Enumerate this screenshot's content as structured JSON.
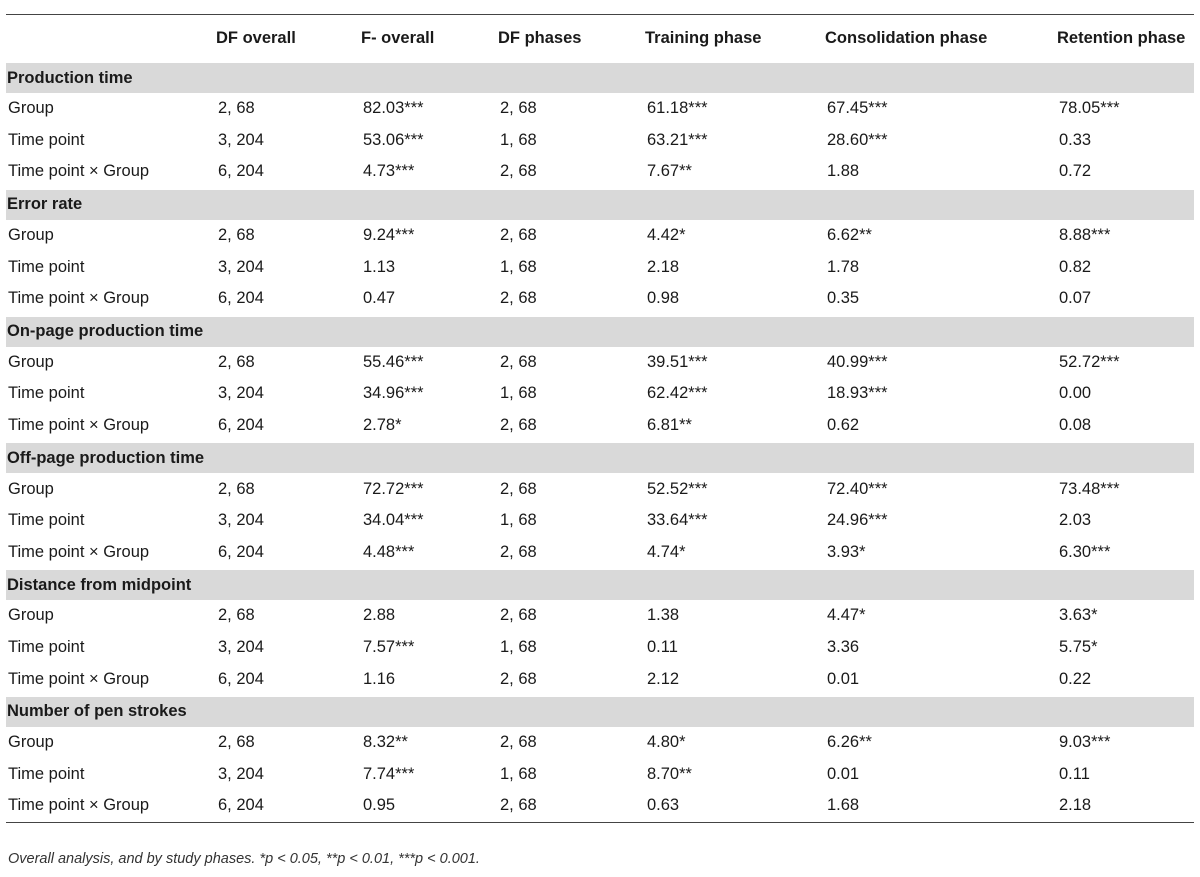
{
  "table": {
    "headers": [
      "",
      "DF overall",
      "F- overall",
      "DF phases",
      "Training phase",
      "Consolidation phase",
      "Retention phase"
    ],
    "sections": [
      {
        "title": "Production time",
        "rows": [
          [
            "Group",
            "2, 68",
            "82.03***",
            "2, 68",
            "61.18***",
            "67.45***",
            "78.05***"
          ],
          [
            "Time point",
            "3, 204",
            "53.06***",
            "1, 68",
            "63.21***",
            "28.60***",
            "0.33"
          ],
          [
            "Time point × Group",
            "6, 204",
            "4.73***",
            "2, 68",
            "7.67**",
            "1.88",
            "0.72"
          ]
        ]
      },
      {
        "title": "Error rate",
        "rows": [
          [
            "Group",
            "2, 68",
            "9.24***",
            "2, 68",
            "4.42*",
            "6.62**",
            "8.88***"
          ],
          [
            "Time point",
            "3, 204",
            "1.13",
            "1, 68",
            "2.18",
            "1.78",
            "0.82"
          ],
          [
            "Time point × Group",
            "6, 204",
            "0.47",
            "2, 68",
            "0.98",
            "0.35",
            "0.07"
          ]
        ]
      },
      {
        "title": "On-page production time",
        "rows": [
          [
            "Group",
            "2, 68",
            "55.46***",
            "2, 68",
            "39.51***",
            "40.99***",
            "52.72***"
          ],
          [
            "Time point",
            "3, 204",
            "34.96***",
            "1, 68",
            "62.42***",
            "18.93***",
            "0.00"
          ],
          [
            "Time point × Group",
            "6, 204",
            "2.78*",
            "2, 68",
            "6.81**",
            "0.62",
            "0.08"
          ]
        ]
      },
      {
        "title": "Off-page production time",
        "rows": [
          [
            "Group",
            "2, 68",
            "72.72***",
            "2, 68",
            "52.52***",
            "72.40***",
            "73.48***"
          ],
          [
            "Time point",
            "3, 204",
            "34.04***",
            "1, 68",
            "33.64***",
            "24.96***",
            "2.03"
          ],
          [
            "Time point × Group",
            "6, 204",
            "4.48***",
            "2, 68",
            "4.74*",
            "3.93*",
            "6.30***"
          ]
        ]
      },
      {
        "title": "Distance from midpoint",
        "rows": [
          [
            "Group",
            "2, 68",
            "2.88",
            "2, 68",
            "1.38",
            "4.47*",
            "3.63*"
          ],
          [
            "Time point",
            "3, 204",
            "7.57***",
            "1, 68",
            "0.11",
            "3.36",
            "5.75*"
          ],
          [
            "Time point × Group",
            "6, 204",
            "1.16",
            "2, 68",
            "2.12",
            "0.01",
            "0.22"
          ]
        ]
      },
      {
        "title": "Number of pen strokes",
        "rows": [
          [
            "Group",
            "2, 68",
            "8.32**",
            "2, 68",
            "4.80*",
            "6.26**",
            "9.03***"
          ],
          [
            "Time point",
            "3, 204",
            "7.74***",
            "1, 68",
            "8.70**",
            "0.01",
            "0.11"
          ],
          [
            "Time point × Group",
            "6, 204",
            "0.95",
            "2, 68",
            "0.63",
            "1.68",
            "2.18"
          ]
        ]
      }
    ]
  },
  "footnote": "Overall analysis, and by study phases. *p < 0.05, **p < 0.01, ***p < 0.001."
}
